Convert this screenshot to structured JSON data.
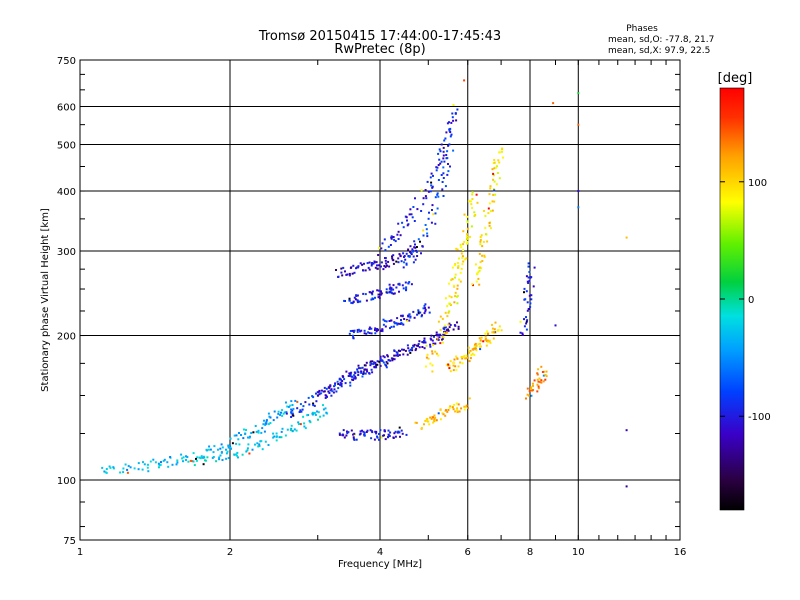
{
  "chart_data": {
    "type": "scatter",
    "title": "Tromsø 20150415 17:44:00-17:45:43",
    "subtitle": "RwPretec (8p)",
    "xlabel": "Frequency [MHz]",
    "ylabel": "Stationary phase Virtual Height [km]",
    "x_scale": "log",
    "y_scale": "log",
    "xlim": [
      1,
      16
    ],
    "ylim": [
      75,
      750
    ],
    "x_ticks": [
      "1",
      "2",
      "4",
      "6",
      "8",
      "10",
      "16"
    ],
    "x_tick_values": [
      1,
      2,
      4,
      6,
      8,
      10,
      16
    ],
    "y_ticks": [
      "75",
      "100",
      "200",
      "300",
      "400",
      "500",
      "600",
      "750"
    ],
    "y_tick_values": [
      75,
      100,
      200,
      300,
      400,
      500,
      600,
      750
    ],
    "grid": true,
    "annotation": {
      "title": "Phases",
      "line1": "mean, sd,O: -77.8, 21.7",
      "line2": "mean, sd,X:  97.9, 22.5"
    },
    "colorbar": {
      "label": "[deg]",
      "range": [
        -180,
        180
      ],
      "ticks": [
        "100",
        "0",
        "-100"
      ],
      "tick_values": [
        100,
        0,
        -100
      ]
    },
    "traces": [
      {
        "x": [
          1.1,
          1.3,
          1.5,
          1.7,
          1.9,
          2.1,
          2.3,
          2.5,
          2.7
        ],
        "y": [
          105,
          106,
          109,
          112,
          116,
          122,
          129,
          137,
          146
        ],
        "phase": -35
      },
      {
        "x": [
          1.7,
          2.0,
          2.3,
          2.6,
          2.9,
          3.1
        ],
        "y": [
          110,
          113,
          118,
          125,
          134,
          142
        ],
        "phase": -25
      },
      {
        "x": [
          2.6,
          2.9,
          3.2,
          3.5,
          3.8,
          4.1
        ],
        "y": [
          135,
          145,
          155,
          163,
          170,
          176
        ],
        "phase": -90
      },
      {
        "x": [
          3.0,
          3.3,
          3.6,
          3.9,
          4.2,
          4.5,
          4.8,
          5.1,
          5.4,
          5.7
        ],
        "y": [
          150,
          160,
          168,
          174,
          180,
          186,
          190,
          196,
          204,
          212
        ],
        "phase": -110
      },
      {
        "x": [
          3.3,
          3.6,
          3.9,
          4.2,
          4.5
        ],
        "y": [
          125,
          124,
          124,
          125,
          126
        ],
        "phase": -105
      },
      {
        "x": [
          3.3,
          3.6,
          3.9,
          4.2,
          4.5,
          4.8
        ],
        "y": [
          270,
          275,
          280,
          285,
          295,
          305
        ],
        "phase": -115
      },
      {
        "x": [
          3.4,
          3.7,
          4.0,
          4.3,
          4.6
        ],
        "y": [
          235,
          240,
          245,
          250,
          255
        ],
        "phase": -100
      },
      {
        "x": [
          3.5,
          3.8,
          4.1,
          4.4,
          4.7,
          5.0
        ],
        "y": [
          200,
          205,
          210,
          215,
          220,
          228
        ],
        "phase": -95
      },
      {
        "x": [
          4.0,
          4.4,
          4.8,
          5.2,
          5.5,
          5.7
        ],
        "y": [
          300,
          330,
          380,
          440,
          520,
          600
        ],
        "phase": -100
      },
      {
        "x": [
          4.5,
          4.9,
          5.3,
          5.6
        ],
        "y": [
          280,
          320,
          400,
          500
        ],
        "phase": -85
      },
      {
        "x": [
          5.0,
          5.3,
          5.6,
          5.9
        ],
        "y": [
          170,
          200,
          250,
          320
        ],
        "phase": 100
      },
      {
        "x": [
          5.5,
          5.8,
          6.1,
          6.4,
          6.7,
          6.9
        ],
        "y": [
          170,
          178,
          185,
          192,
          200,
          210
        ],
        "phase": 105
      },
      {
        "x": [
          6.2,
          6.4,
          6.6,
          6.8,
          7.0
        ],
        "y": [
          250,
          300,
          360,
          430,
          500
        ],
        "phase": 95
      },
      {
        "x": [
          5.6,
          5.8,
          6.0,
          6.2
        ],
        "y": [
          230,
          280,
          340,
          400
        ],
        "phase": 90
      },
      {
        "x": [
          4.8,
          5.2,
          5.6,
          6.0
        ],
        "y": [
          130,
          135,
          140,
          145
        ],
        "phase": 110
      },
      {
        "x": [
          8.0,
          8.3,
          8.6
        ],
        "y": [
          150,
          160,
          170
        ],
        "phase": 130
      },
      {
        "x": [
          7.7,
          7.9,
          8.1
        ],
        "y": [
          200,
          240,
          280
        ],
        "phase": -100
      }
    ],
    "isolated_points": [
      {
        "x": 8.9,
        "y": 610,
        "phase": 140
      },
      {
        "x": 10.0,
        "y": 640,
        "phase": 20
      },
      {
        "x": 10.0,
        "y": 550,
        "phase": 140
      },
      {
        "x": 10.0,
        "y": 400,
        "phase": -110
      },
      {
        "x": 10.0,
        "y": 370,
        "phase": -60
      },
      {
        "x": 12.5,
        "y": 320,
        "phase": 110
      },
      {
        "x": 12.5,
        "y": 127,
        "phase": -120
      },
      {
        "x": 12.5,
        "y": 97,
        "phase": -130
      },
      {
        "x": 9.0,
        "y": 210,
        "phase": -110
      },
      {
        "x": 5.9,
        "y": 680,
        "phase": 150
      }
    ]
  }
}
